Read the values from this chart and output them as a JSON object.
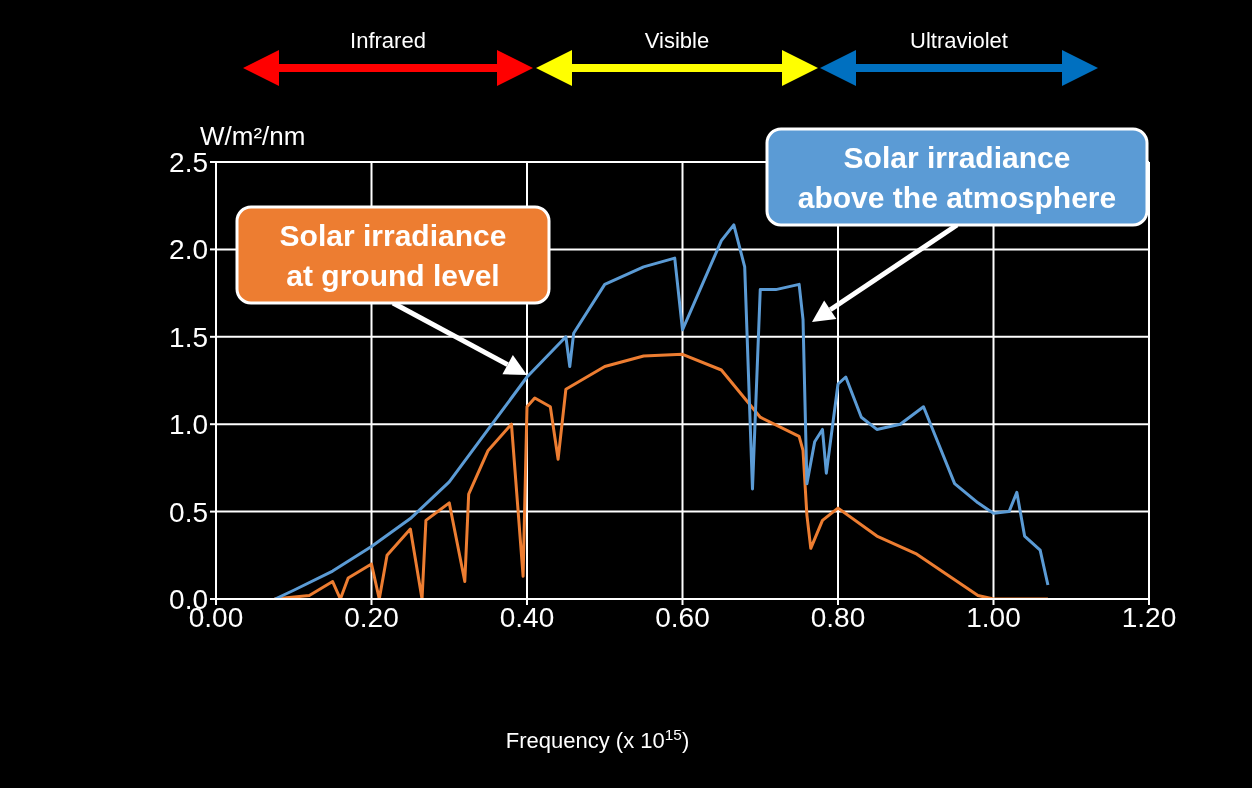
{
  "chart_data": {
    "type": "line",
    "xlabel": "Frequency (x 10$^{15}$)",
    "ylabel": "W/m²/nm",
    "xlim": [
      0,
      1.2
    ],
    "ylim": [
      0,
      2.5
    ],
    "xticks": [
      {
        "value": 0,
        "label": "0.00"
      },
      {
        "value": 0.2,
        "label": "0.20"
      },
      {
        "value": 0.4,
        "label": "0.40"
      },
      {
        "value": 0.6,
        "label": "0.60"
      },
      {
        "value": 0.8,
        "label": "0.80"
      },
      {
        "value": 1.0,
        "label": "1.00"
      },
      {
        "value": 1.2,
        "label": "1.20"
      }
    ],
    "yticks": [
      {
        "value": 0,
        "label": "0.0"
      },
      {
        "value": 0.5,
        "label": "0.5"
      },
      {
        "value": 1.0,
        "label": "1.0"
      },
      {
        "value": 1.5,
        "label": "1.5"
      },
      {
        "value": 2.0,
        "label": "2.0"
      },
      {
        "value": 2.5,
        "label": "2.5"
      }
    ],
    "grid": true,
    "marker": "none",
    "line_style": "solid",
    "series": [
      {
        "color": "#ed7d31",
        "x": [
          0.075,
          0.12,
          0.15,
          0.16,
          0.17,
          0.2,
          0.21,
          0.22,
          0.25,
          0.265,
          0.27,
          0.3,
          0.32,
          0.325,
          0.35,
          0.38,
          0.395,
          0.4,
          0.41,
          0.43,
          0.44,
          0.45,
          0.5,
          0.55,
          0.6,
          0.65,
          0.7,
          0.75,
          0.755,
          0.76,
          0.765,
          0.78,
          0.8,
          0.85,
          0.9,
          0.95,
          0.98,
          1.0,
          1.07
        ],
        "values": [
          0,
          0.02,
          0.1,
          0,
          0.12,
          0.2,
          0,
          0.25,
          0.4,
          0,
          0.45,
          0.55,
          0.1,
          0.6,
          0.85,
          1.0,
          0.13,
          1.1,
          1.15,
          1.1,
          0.8,
          1.2,
          1.33,
          1.39,
          1.4,
          1.31,
          1.04,
          0.93,
          0.85,
          0.48,
          0.29,
          0.45,
          0.52,
          0.36,
          0.26,
          0.11,
          0.02,
          0,
          0
        ]
      },
      {
        "color": "#5b9bd5",
        "x": [
          0.076,
          0.1,
          0.15,
          0.2,
          0.25,
          0.3,
          0.35,
          0.4,
          0.45,
          0.455,
          0.46,
          0.5,
          0.55,
          0.59,
          0.6,
          0.65,
          0.666,
          0.68,
          0.69,
          0.7,
          0.72,
          0.75,
          0.755,
          0.76,
          0.77,
          0.78,
          0.785,
          0.8,
          0.81,
          0.83,
          0.85,
          0.88,
          0.91,
          0.92,
          0.95,
          0.98,
          1.0,
          1.02,
          1.03,
          1.04,
          1.05,
          1.06,
          1.07
        ],
        "values": [
          0,
          0.05,
          0.16,
          0.3,
          0.46,
          0.67,
          0.97,
          1.27,
          1.5,
          1.33,
          1.52,
          1.8,
          1.9,
          1.95,
          1.54,
          2.05,
          2.14,
          1.9,
          0.63,
          1.77,
          1.77,
          1.8,
          1.6,
          0.66,
          0.9,
          0.97,
          0.72,
          1.23,
          1.27,
          1.04,
          0.97,
          1.0,
          1.1,
          0.99,
          0.66,
          0.55,
          0.49,
          0.5,
          0.61,
          0.36,
          0.32,
          0.28,
          0.08
        ]
      }
    ],
    "annotations": [
      "Infrared",
      "Visible",
      "Ultraviolet",
      "Solar irradiance at ground level",
      "Solar irradiance above the atmosphere"
    ]
  }
}
